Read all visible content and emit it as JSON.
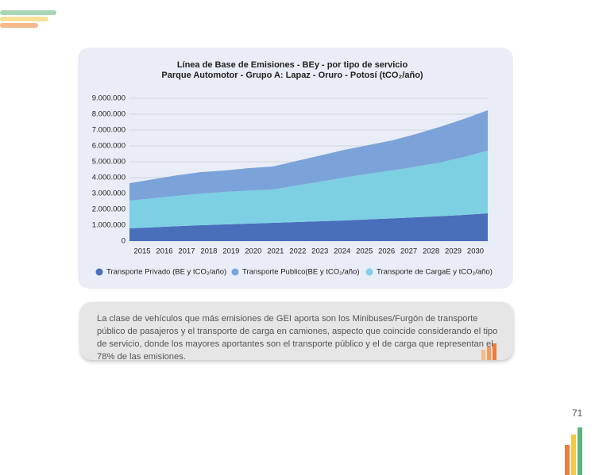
{
  "chart_data": {
    "type": "stacked-area",
    "title": [
      "Línea de Base de Emisiones - BEy - por tipo de servicio",
      "Parque Automotor - Grupo A: Lapaz - Oruro - Potosí (tCO₂/año)"
    ],
    "categories": [
      "2015",
      "2016",
      "2017",
      "2018",
      "2019",
      "2020",
      "2021",
      "2022",
      "2023",
      "2024",
      "2025",
      "2026",
      "2027",
      "2028",
      "2029",
      "2030"
    ],
    "series": [
      {
        "name": "Transporte Privado (BE y tCO₂/año)",
        "color": "#4a6fba",
        "values": [
          800000,
          870000,
          940000,
          1000000,
          1050000,
          1100000,
          1150000,
          1200000,
          1250000,
          1300000,
          1370000,
          1430000,
          1500000,
          1570000,
          1650000,
          1750000
        ]
      },
      {
        "name": "Transporte Publico(BE y tCO₂/año)",
        "color": "#7ba3d9",
        "values": [
          1100000,
          1200000,
          1300000,
          1350000,
          1350000,
          1420000,
          1450000,
          1550000,
          1650000,
          1750000,
          1800000,
          1900000,
          2050000,
          2250000,
          2400000,
          2550000
        ]
      },
      {
        "name": "Transporte de CargaE y tCO₂/año)",
        "color": "#7dd0e3",
        "values": [
          1750000,
          1830000,
          1910000,
          2000000,
          2050000,
          2080000,
          2100000,
          2300000,
          2500000,
          2700000,
          2880000,
          3020000,
          3200000,
          3380000,
          3650000,
          3950000
        ]
      }
    ],
    "ylim": [
      0,
      9000000
    ],
    "yticks": [
      0,
      {
        "value": 1000000,
        "label": "1.000.000"
      },
      {
        "value": 2000000,
        "label": "2.000.000"
      },
      {
        "value": 3000000,
        "label": "3.000.000"
      },
      {
        "value": 4000000,
        "label": "4.000.000"
      },
      {
        "value": 5000000,
        "label": "5.000.000"
      },
      {
        "value": 6000000,
        "label": "6.000.000"
      },
      {
        "value": 7000000,
        "label": "7.000.000"
      },
      {
        "value": 8000000,
        "label": "8.000.000"
      },
      {
        "value": 9000000,
        "label": "9.000.000"
      }
    ],
    "grid": true,
    "legend": "bottom"
  },
  "note": "La clase de vehículos que más emisiones de GEI aporta son los Minibuses/Furgón de transporte público de pasajeros y el transporte de carga en camiones, aspecto que coincide considerando el tipo de servicio, donde los mayores aportantes son el transporte público y el de carga que representan el 78% de las emisiones.",
  "page_number": "71"
}
